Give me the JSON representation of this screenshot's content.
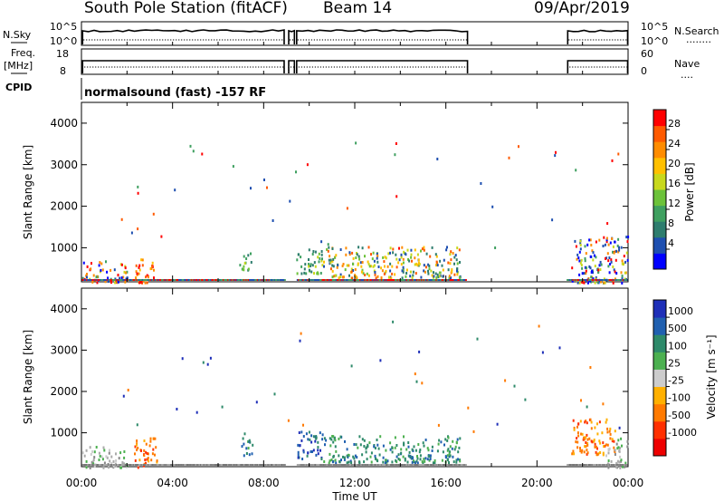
{
  "header": {
    "station": "South Pole Station (fitACF)",
    "beam": "Beam 14",
    "date": "09/Apr/2019"
  },
  "strips": {
    "nsky": {
      "label": "N.Sky",
      "left_ticks": [
        "10^5",
        "10^0"
      ],
      "right_ticks": [
        "10^5",
        "10^0"
      ],
      "right_label": "N.Search",
      "right_legend_line": "........"
    },
    "freq": {
      "label_top": "Freq.",
      "label_bottom": "[MHz]",
      "left_ticks": [
        "18",
        "8"
      ],
      "right_ticks": [
        "60",
        "0"
      ],
      "right_label": "Nave",
      "right_legend_line": "...."
    },
    "cpid": {
      "label": "CPID",
      "text": "normalsound (fast) -157 RF"
    }
  },
  "colors": {
    "curve": "#000000",
    "background": "#ffffff",
    "ground_scatter": "#888888"
  },
  "chart_data": [
    {
      "type": "heatmap",
      "name": "power-panel",
      "x_range_hours": [
        0,
        24
      ],
      "ylabel": "Slant Range [km]",
      "yticks": [
        1000,
        2000,
        3000,
        4000
      ],
      "ylim": [
        180,
        4500
      ],
      "colorbar_label": "Power [dB]",
      "colorbar_ticks": [
        "4",
        "8",
        "12",
        "16",
        "20",
        "24",
        "28"
      ],
      "colorbar_colors": [
        "#0000ff",
        "#1e4fb0",
        "#2e7d6e",
        "#3fa060",
        "#6cc23a",
        "#c8d81c",
        "#ffc000",
        "#ff8c00",
        "#ff5a00",
        "#ff0000"
      ],
      "scatter_blocks": [
        {
          "t0": 0.0,
          "t1": 2.0,
          "r0": 180,
          "r1": 700,
          "level": "mixed"
        },
        {
          "t0": 2.3,
          "t1": 3.3,
          "r0": 180,
          "r1": 800,
          "level": "high"
        },
        {
          "t0": 6.9,
          "t1": 7.5,
          "r0": 480,
          "r1": 900,
          "level": "low"
        },
        {
          "t0": 9.4,
          "t1": 10.6,
          "r0": 400,
          "r1": 1000,
          "level": "low"
        },
        {
          "t0": 10.6,
          "t1": 16.6,
          "r0": 300,
          "r1": 1050,
          "level": "mid"
        },
        {
          "t0": 21.5,
          "t1": 24.0,
          "r0": 180,
          "r1": 1300,
          "level": "mixed"
        }
      ]
    },
    {
      "type": "heatmap",
      "name": "velocity-panel",
      "x_range_hours": [
        0,
        24
      ],
      "xlabel": "Time UT",
      "xticks": [
        "00:00",
        "04:00",
        "08:00",
        "12:00",
        "16:00",
        "20:00",
        "00:00"
      ],
      "ylabel": "Slant Range [km]",
      "yticks": [
        1000,
        2000,
        3000,
        4000
      ],
      "ylim": [
        180,
        4500
      ],
      "colorbar_label": "Velocity [m s⁻¹]",
      "colorbar_ticks": [
        "1000",
        "500",
        "100",
        "25",
        "-25",
        "-100",
        "-500",
        "-1000"
      ],
      "colorbar_colors": [
        "#1e2fb8",
        "#2060b0",
        "#2e8a6a",
        "#4cb050",
        "#cccccc",
        "#ffb000",
        "#ff7a00",
        "#ff3000",
        "#ee0000"
      ],
      "scatter_blocks": [
        {
          "t0": 0.0,
          "t1": 2.0,
          "r0": 180,
          "r1": 700,
          "level": "ground"
        },
        {
          "t0": 2.3,
          "t1": 3.3,
          "r0": 180,
          "r1": 900,
          "level": "neg"
        },
        {
          "t0": 6.9,
          "t1": 7.5,
          "r0": 480,
          "r1": 900,
          "level": "pos"
        },
        {
          "t0": 9.4,
          "t1": 10.6,
          "r0": 400,
          "r1": 1050,
          "level": "strongpos"
        },
        {
          "t0": 10.6,
          "t1": 16.6,
          "r0": 300,
          "r1": 950,
          "level": "pos"
        },
        {
          "t0": 21.5,
          "t1": 23.4,
          "r0": 500,
          "r1": 1350,
          "level": "neg"
        },
        {
          "t0": 23.0,
          "t1": 24.0,
          "r0": 180,
          "r1": 900,
          "level": "ground"
        }
      ]
    }
  ]
}
